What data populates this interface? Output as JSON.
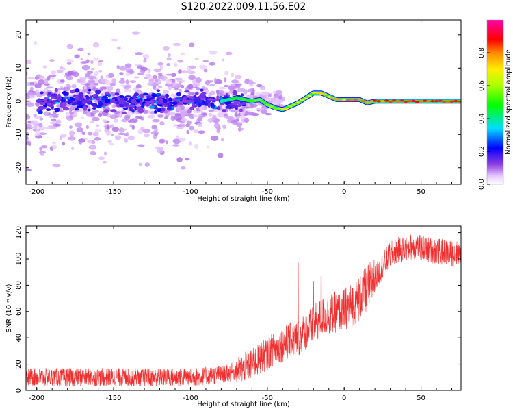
{
  "title": "S120.2022.009.11.56.E02",
  "top_panel": {
    "xlabel": "Height of straight line (km)",
    "ylabel": "Frequency (Hz)",
    "colorbar_label": "Normalized spectral amplitude"
  },
  "bottom_panel": {
    "xlabel": "Height of straight line (km)",
    "ylabel": "SNR (10 * v/v)",
    "line_color": "#f03030"
  },
  "chart_data": [
    {
      "type": "heatmap",
      "xlabel": "Height of straight line (km)",
      "ylabel": "Frequency (Hz)",
      "xlim": [
        -207,
        76
      ],
      "ylim": [
        -25,
        24.5
      ],
      "x_ticks": [
        "-200",
        "-150",
        "-100",
        "-50",
        "0",
        "50"
      ],
      "y_ticks": [
        "-20",
        "-10",
        "0",
        "10",
        "20"
      ],
      "colorbar": {
        "label": "Normalized spectral amplitude",
        "range": [
          0,
          1
        ],
        "ticks": [
          "0.0",
          "0.2",
          "0.4",
          "0.6",
          "0.8"
        ],
        "colormap": "rainbow (white-violet-blue-cyan-green-yellow-red-magenta)"
      },
      "ridge": {
        "x": [
          -80,
          -75,
          -70,
          -65,
          -60,
          -55,
          -50,
          -45,
          -40,
          -35,
          -30,
          -25,
          -20,
          -15,
          -10,
          -5,
          0,
          5,
          10,
          15,
          20,
          25,
          30,
          40,
          50,
          60,
          76
        ],
        "frequency": [
          0,
          0.5,
          1,
          0.5,
          0,
          0.5,
          -1,
          -2,
          -2.5,
          -1.5,
          -0.5,
          1,
          2.5,
          2.5,
          1.5,
          0.5,
          0.5,
          0.5,
          0.5,
          -0.5,
          0,
          0,
          0,
          0,
          0,
          0,
          0
        ],
        "amplitude": [
          0.4,
          0.45,
          0.5,
          0.55,
          0.55,
          0.6,
          0.6,
          0.65,
          0.65,
          0.7,
          0.7,
          0.75,
          0.75,
          0.8,
          0.75,
          0.8,
          0.8,
          0.85,
          0.85,
          0.85,
          0.9,
          0.9,
          0.95,
          0.95,
          0.95,
          0.95,
          0.95
        ]
      }
    },
    {
      "type": "line",
      "xlabel": "Height of straight line (km)",
      "ylabel": "SNR (10 * v/v)",
      "xlim": [
        -207,
        76
      ],
      "ylim": [
        0,
        125
      ],
      "x_ticks": [
        "-200",
        "-150",
        "-100",
        "-50",
        "0",
        "50"
      ],
      "y_ticks": [
        "0",
        "20",
        "40",
        "60",
        "80",
        "100",
        "120"
      ],
      "grid": false,
      "series": [
        {
          "color": "#f03030",
          "x": [
            -207,
            -180,
            -150,
            -120,
            -100,
            -80,
            -70,
            -60,
            -55,
            -50,
            -45,
            -40,
            -35,
            -30,
            -25,
            -20,
            -15,
            -10,
            -5,
            0,
            5,
            10,
            15,
            20,
            25,
            30,
            35,
            40,
            45,
            50,
            55,
            60,
            65,
            70,
            76
          ],
          "values": [
            10,
            10,
            10,
            10,
            10,
            12,
            15,
            20,
            24,
            28,
            32,
            35,
            38,
            40,
            45,
            50,
            55,
            58,
            60,
            62,
            65,
            70,
            78,
            85,
            95,
            103,
            107,
            108,
            110,
            108,
            107,
            106,
            105,
            104,
            104
          ],
          "spikes": [
            [
              -30,
              97
            ],
            [
              -20,
              83
            ],
            [
              -15,
              87
            ]
          ]
        }
      ]
    }
  ]
}
